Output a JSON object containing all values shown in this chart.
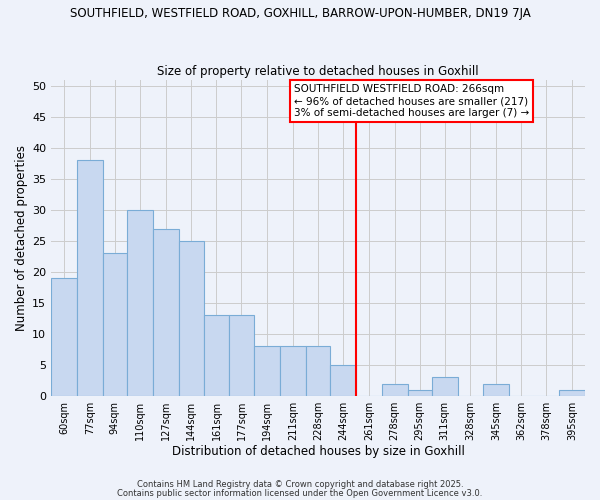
{
  "title_top": "SOUTHFIELD, WESTFIELD ROAD, GOXHILL, BARROW-UPON-HUMBER, DN19 7JA",
  "title_sub": "Size of property relative to detached houses in Goxhill",
  "xlabel": "Distribution of detached houses by size in Goxhill",
  "ylabel": "Number of detached properties",
  "bar_labels": [
    "60sqm",
    "77sqm",
    "94sqm",
    "110sqm",
    "127sqm",
    "144sqm",
    "161sqm",
    "177sqm",
    "194sqm",
    "211sqm",
    "228sqm",
    "244sqm",
    "261sqm",
    "278sqm",
    "295sqm",
    "311sqm",
    "328sqm",
    "345sqm",
    "362sqm",
    "378sqm",
    "395sqm"
  ],
  "bar_values": [
    19,
    38,
    23,
    30,
    27,
    25,
    13,
    13,
    8,
    8,
    8,
    5,
    0,
    2,
    1,
    3,
    0,
    2,
    0,
    0,
    1
  ],
  "bin_edges": [
    60,
    77,
    94,
    110,
    127,
    144,
    161,
    177,
    194,
    211,
    228,
    244,
    261,
    278,
    295,
    311,
    328,
    345,
    362,
    378,
    395,
    412
  ],
  "bar_color": "#c8d8f0",
  "bar_edge_color": "#7aacd6",
  "bg_color": "#eef2fa",
  "grid_color": "#cccccc",
  "vline_x": 261,
  "vline_color": "red",
  "annotation_text": "SOUTHFIELD WESTFIELD ROAD: 266sqm\n← 96% of detached houses are smaller (217)\n3% of semi-detached houses are larger (7) →",
  "annotation_box_color": "white",
  "annotation_box_edge": "red",
  "ylim": [
    0,
    51
  ],
  "yticks": [
    0,
    5,
    10,
    15,
    20,
    25,
    30,
    35,
    40,
    45,
    50
  ],
  "footer1": "Contains HM Land Registry data © Crown copyright and database right 2025.",
  "footer2": "Contains public sector information licensed under the Open Government Licence v3.0."
}
